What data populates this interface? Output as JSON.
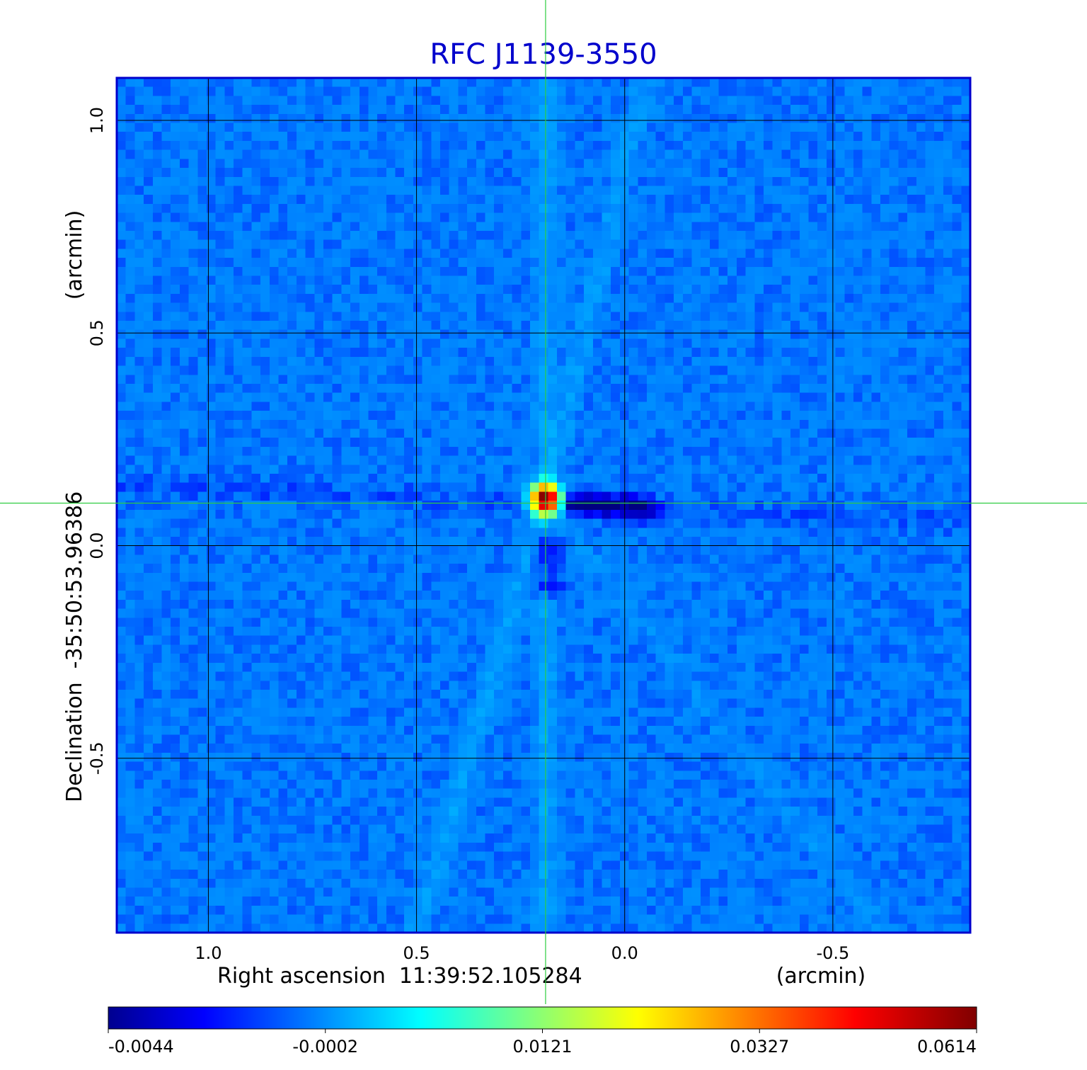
{
  "chart_data": {
    "type": "heatmap",
    "title": "RFC J1139-3550",
    "xlabel": "Right ascension  11:39:52.105284",
    "xunit": "(arcmin)",
    "ylabel": "Declination  -35:50:53.96386",
    "yunit": "(arcmin)",
    "xlim": [
      1.22,
      -0.83
    ],
    "ylim": [
      -0.91,
      1.1
    ],
    "x_ticks": [
      {
        "value": 1.0,
        "label": "1.0"
      },
      {
        "value": 0.5,
        "label": "0.5"
      },
      {
        "value": 0.0,
        "label": "0.0"
      },
      {
        "value": -0.5,
        "label": "-0.5"
      }
    ],
    "y_ticks": [
      {
        "value": 1.0,
        "label": "1.0"
      },
      {
        "value": 0.5,
        "label": "0.5"
      },
      {
        "value": 0.0,
        "label": "0.0"
      },
      {
        "value": -0.5,
        "label": "-0.5"
      }
    ],
    "grid": true,
    "crosshair": {
      "x": 0.19,
      "y": 0.1
    },
    "colormap": "jet",
    "colorbar": {
      "position": "bottom",
      "ticks": [
        "-0.0044",
        "-0.0002",
        "0.0121",
        "0.0327",
        "0.0614"
      ],
      "min": -0.0044,
      "max": 0.0614
    },
    "peak": {
      "x": 0.19,
      "y": 0.11,
      "value": 0.0614
    },
    "background_level": -0.0002,
    "features": [
      {
        "kind": "ridge",
        "x0": 1.22,
        "y0": 0.14,
        "x1": -0.83,
        "y1": 0.06,
        "amp": -0.0008
      },
      {
        "kind": "ridge",
        "x0": 0.19,
        "y0": 1.1,
        "x1": 0.19,
        "y1": -0.91,
        "amp": 0.0015
      },
      {
        "kind": "ridge",
        "x0": 0.19,
        "y0": 0.11,
        "x1": -0.05,
        "y1": 1.1,
        "amp": 0.0012
      },
      {
        "kind": "ridge",
        "x0": 0.19,
        "y0": 0.11,
        "x1": 0.5,
        "y1": -0.91,
        "amp": 0.0014
      },
      {
        "kind": "ridge",
        "x0": 0.19,
        "y0": 0.11,
        "x1": -0.62,
        "y1": -0.91,
        "amp": 0.0007
      },
      {
        "kind": "trough",
        "x0": 0.13,
        "y0": 0.1,
        "x1": -0.05,
        "y1": 0.09,
        "amp": -0.0035
      },
      {
        "kind": "trough",
        "x0": 0.19,
        "y0": 0.02,
        "x1": 0.18,
        "y1": -0.1,
        "amp": -0.0032
      }
    ]
  }
}
